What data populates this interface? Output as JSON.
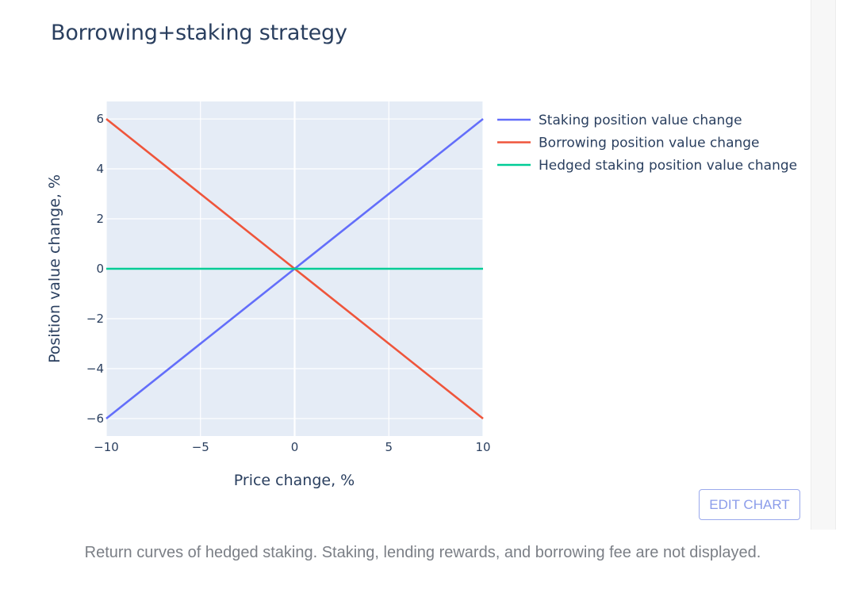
{
  "chart_data": {
    "type": "line",
    "title": "Borrowing+staking strategy",
    "xlabel": "Price change, %",
    "ylabel": "Position value change, %",
    "xlim": [
      -10,
      10
    ],
    "ylim": [
      -6.7,
      6.7
    ],
    "x_ticks": [
      -10,
      -5,
      0,
      5,
      10
    ],
    "y_ticks": [
      -6,
      -4,
      -2,
      0,
      2,
      4,
      6
    ],
    "x_tick_labels": [
      "−10",
      "−5",
      "0",
      "5",
      "10"
    ],
    "y_tick_labels": [
      "−6",
      "−4",
      "−2",
      "0",
      "2",
      "4",
      "6"
    ],
    "grid": true,
    "legend_position": "top-right outside",
    "series": [
      {
        "name": "Staking position value change",
        "color": "#636efa",
        "x": [
          -10,
          10
        ],
        "y": [
          -6,
          6
        ]
      },
      {
        "name": "Borrowing position value change",
        "color": "#ef553b",
        "x": [
          -10,
          10
        ],
        "y": [
          6,
          -6
        ]
      },
      {
        "name": "Hedged staking position value change",
        "color": "#00cc96",
        "x": [
          -10,
          10
        ],
        "y": [
          0,
          0
        ]
      }
    ]
  },
  "toolbar": {
    "edit_label": "EDIT CHART"
  },
  "caption": "Return curves of hedged staking. Staking, lending rewards, and borrowing fee are not displayed."
}
